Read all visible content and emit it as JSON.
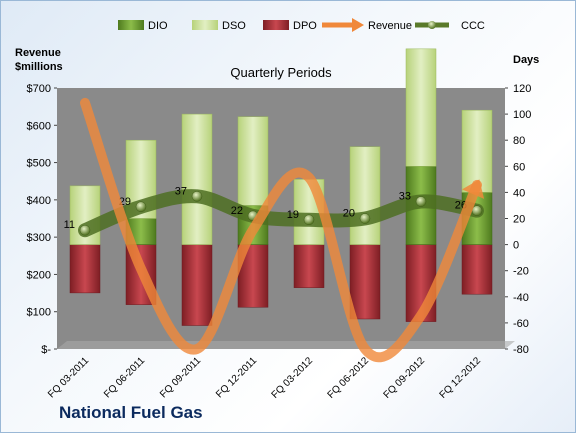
{
  "company": "National Fuel Gas",
  "chart_data": {
    "type": "bar",
    "title": "Quarterly Periods",
    "ylabel_left": "Revenue\n$millions",
    "ylabel_right": "Days",
    "categories": [
      "FQ 03-2011",
      "FQ 06-2011",
      "FQ 09-2011",
      "FQ 12-2011",
      "FQ 03-2012",
      "FQ 06-2012",
      "FQ 09-2012",
      "FQ 12-2012"
    ],
    "series": [
      {
        "name": "DIO",
        "axis": "right",
        "values": [
          0,
          20,
          0,
          30,
          0,
          0,
          60,
          40
        ]
      },
      {
        "name": "DSO",
        "axis": "right",
        "values": [
          45,
          60,
          100,
          68,
          50,
          75,
          90,
          63
        ]
      },
      {
        "name": "DPO",
        "axis": "right",
        "values": [
          -37,
          -46,
          -62,
          -48,
          -33,
          -57,
          -59,
          -38
        ]
      },
      {
        "name": "Revenue",
        "axis": "left",
        "values": [
          660,
          215,
          0,
          320,
          460,
          0,
          90,
          440
        ]
      },
      {
        "name": "CCC",
        "axis": "right",
        "values": [
          11,
          29,
          37,
          22,
          19,
          20,
          33,
          26
        ]
      }
    ],
    "data_labels": [
      "11",
      "29",
      "37",
      "22",
      "19",
      "20",
      "33",
      "26"
    ],
    "ylim_left": [
      0,
      700
    ],
    "ylim_right": [
      -80,
      120
    ],
    "left_ticks": [
      "$-",
      "$100",
      "$200",
      "$300",
      "$400",
      "$500",
      "$600",
      "$700"
    ],
    "right_ticks": [
      "-80",
      "-60",
      "-40",
      "-20",
      "0",
      "20",
      "40",
      "60",
      "80",
      "100",
      "120"
    ],
    "legend": [
      "DIO",
      "DSO",
      "DPO",
      "Revenue",
      "CCC"
    ],
    "legend_position": "top",
    "colors": {
      "DIO": "#6a9a2f",
      "DSO": "#cfe3a0",
      "DPO": "#b2373e",
      "Revenue": "#f0883a",
      "CCC": "#5a7a2a",
      "plot_bg": "#8a8a8a",
      "title_text": "#000000",
      "company_text": "#0b2a5e"
    }
  }
}
